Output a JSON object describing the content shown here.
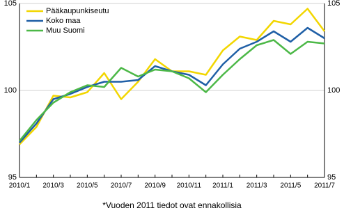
{
  "chart_data": {
    "type": "line",
    "categories": [
      "2010/1",
      null,
      "2010/3",
      null,
      "2010/5",
      null,
      "2010/7",
      null,
      "2010/9",
      null,
      "2010/11",
      null,
      "2011/1",
      null,
      "2011/3",
      null,
      "2011/5",
      null,
      "2011/7"
    ],
    "series": [
      {
        "name": "Pääkaupunkiseutu",
        "color": "#f2d600",
        "values": [
          96.9,
          97.9,
          99.7,
          99.6,
          99.9,
          101.0,
          99.5,
          100.5,
          101.8,
          101.1,
          101.1,
          100.9,
          102.3,
          103.1,
          102.9,
          104.0,
          103.8,
          104.7,
          103.4
        ]
      },
      {
        "name": "Koko maa",
        "color": "#1f5fa6",
        "values": [
          97.0,
          98.1,
          99.5,
          99.8,
          100.2,
          100.5,
          100.5,
          100.6,
          101.4,
          101.1,
          100.9,
          100.3,
          101.5,
          102.4,
          102.8,
          103.4,
          102.8,
          103.6,
          103.0
        ]
      },
      {
        "name": "Muu Suomi",
        "color": "#4cb847",
        "values": [
          97.1,
          98.3,
          99.3,
          99.9,
          100.3,
          100.2,
          101.3,
          100.8,
          101.2,
          101.1,
          100.7,
          99.9,
          100.9,
          101.8,
          102.6,
          102.9,
          102.1,
          102.8,
          102.7
        ]
      }
    ],
    "ylim": [
      95,
      105
    ],
    "yticks": [
      95,
      100,
      105
    ],
    "grid": true,
    "footnote": "*Vuoden 2011 tiedot ovat ennakollisia"
  }
}
